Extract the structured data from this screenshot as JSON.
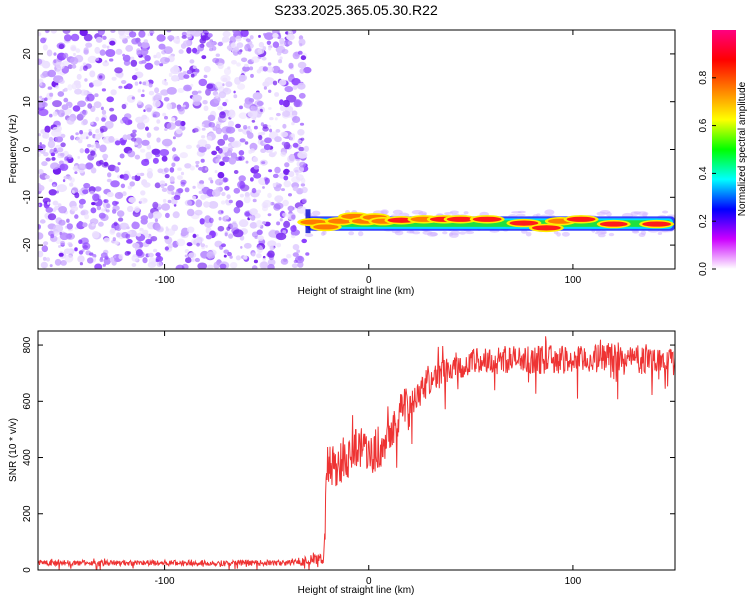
{
  "title": "S233.2025.365.05.30.R22",
  "chart_data": [
    {
      "type": "heatmap",
      "name": "spectrogram",
      "xlabel": "Height of straight line (km)",
      "ylabel": "Frequency (Hz)",
      "xlim": [
        -162,
        150
      ],
      "ylim": [
        -25,
        25
      ],
      "xticks": [
        -100,
        0,
        100
      ],
      "xtick_labels": [
        "-100",
        "0",
        "100"
      ],
      "yticks": [
        20,
        10,
        0,
        -10,
        -20
      ],
      "ytick_labels": [
        "20",
        "10",
        "0",
        "-10",
        "-20"
      ],
      "noise_region": {
        "x_start": -162,
        "x_end": -30,
        "y_min": -25,
        "y_max": 25
      },
      "signal_band": {
        "x_start": -30,
        "x_end": 150,
        "frequency_center": -15.5,
        "frequency_halfwidth": 1.0
      },
      "signal_hotspots": [
        {
          "x": -27,
          "f": -15.2,
          "amplitude": 0.85
        },
        {
          "x": -21,
          "f": -16.2,
          "amplitude": 0.8
        },
        {
          "x": -14,
          "f": -15.0,
          "amplitude": 0.75
        },
        {
          "x": -7,
          "f": -14.0,
          "amplitude": 0.85
        },
        {
          "x": -2,
          "f": -15.0,
          "amplitude": 0.8
        },
        {
          "x": 3,
          "f": -14.2,
          "amplitude": 0.75
        },
        {
          "x": 7,
          "f": -15.0,
          "amplitude": 0.7
        },
        {
          "x": 16,
          "f": -14.8,
          "amplitude": 0.9
        },
        {
          "x": 27,
          "f": -14.6,
          "amplitude": 0.85
        },
        {
          "x": 37,
          "f": -14.6,
          "amplitude": 0.95
        },
        {
          "x": 45,
          "f": -14.6,
          "amplitude": 0.9
        },
        {
          "x": 58,
          "f": -14.6,
          "amplitude": 0.95
        },
        {
          "x": 76,
          "f": -15.4,
          "amplitude": 0.95
        },
        {
          "x": 87,
          "f": -16.4,
          "amplitude": 0.95
        },
        {
          "x": 94,
          "f": -15.0,
          "amplitude": 0.8
        },
        {
          "x": 104,
          "f": -14.6,
          "amplitude": 0.95
        },
        {
          "x": 120,
          "f": -15.6,
          "amplitude": 0.9
        },
        {
          "x": 141,
          "f": -15.6,
          "amplitude": 0.95
        }
      ]
    },
    {
      "type": "colorbar",
      "name": "amplitude-colorbar",
      "label": "Normalized spectral amplitude",
      "range": [
        0.0,
        1.0
      ],
      "ticks": [
        0.0,
        0.2,
        0.4,
        0.6,
        0.8
      ],
      "tick_labels": [
        "0.0",
        "0.2",
        "0.4",
        "0.6",
        "0.8"
      ],
      "colors": [
        "#ffffff",
        "#cc00ff",
        "#0000ff",
        "#00ffff",
        "#00ff00",
        "#ffff00",
        "#ff8000",
        "#ff0000",
        "#ff0080"
      ]
    },
    {
      "type": "line",
      "name": "snr-trace",
      "xlabel": "Height of straight line (km)",
      "ylabel": "SNR (10 * v/v)",
      "xlim": [
        -162,
        150
      ],
      "ylim": [
        0,
        850
      ],
      "xticks": [
        -100,
        0,
        100
      ],
      "xtick_labels": [
        "-100",
        "0",
        "100"
      ],
      "yticks": [
        0,
        200,
        400,
        600,
        800
      ],
      "ytick_labels": [
        "0",
        "200",
        "400",
        "600",
        "800"
      ],
      "color": "#ee3333",
      "series": [
        {
          "name": "SNR",
          "x": [
            -162,
            -120,
            -80,
            -40,
            -22,
            -21,
            -18,
            -15,
            -12,
            -10,
            -8,
            -5,
            -2,
            0,
            3,
            6,
            10,
            13,
            15,
            20,
            25,
            30,
            35,
            40,
            50,
            60,
            70,
            80,
            90,
            100,
            110,
            120,
            130,
            140,
            150
          ],
          "y": [
            25,
            25,
            25,
            25,
            40,
            360,
            370,
            340,
            420,
            400,
            440,
            420,
            460,
            410,
            430,
            440,
            500,
            520,
            560,
            600,
            640,
            680,
            700,
            720,
            740,
            745,
            750,
            745,
            750,
            745,
            750,
            760,
            750,
            750,
            740
          ],
          "noise_amplitude": [
            10,
            10,
            10,
            10,
            25,
            80,
            80,
            80,
            80,
            80,
            80,
            80,
            80,
            80,
            80,
            80,
            70,
            70,
            70,
            65,
            60,
            55,
            55,
            50,
            50,
            50,
            50,
            50,
            50,
            50,
            50,
            50,
            50,
            50,
            50
          ]
        }
      ]
    }
  ]
}
